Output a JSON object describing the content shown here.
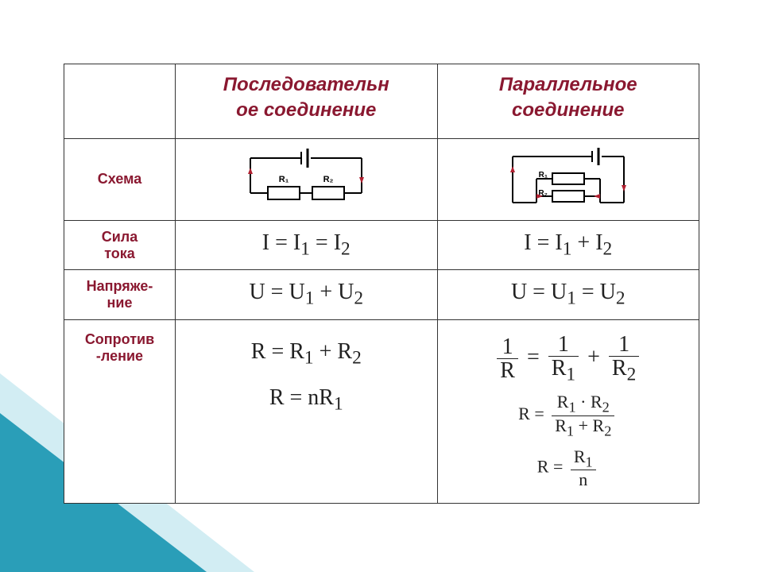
{
  "headers": {
    "series": "Последовательн<br>ое соединение",
    "parallel": "Параллельное<br>соединение"
  },
  "rows": {
    "schema": "Схема",
    "current": "Сила<br>тока",
    "voltage": "Напряже-<br>ние",
    "resistance": "Сопротив<br>-ление"
  },
  "formulas": {
    "series": {
      "current": "I = I<sub>1</sub> = I<sub>2</sub>",
      "voltage": "U = U<sub>1</sub> + U<sub>2</sub>",
      "resistance_line1": "R = R<sub>1</sub> + R<sub>2</sub>",
      "resistance_line2": "R = nR<sub>1</sub>"
    },
    "parallel": {
      "current": "I = I<sub>1</sub> + I<sub>2</sub>",
      "voltage": "U = U<sub>1</sub> = U<sub>2</sub>",
      "resistance_frac_parts": {
        "l_num": "1",
        "l_den": "R",
        "m_num": "1",
        "m_den": "R<sub>1</sub>",
        "r_num": "1",
        "r_den": "R<sub>2</sub>"
      },
      "resistance_line2_parts": {
        "lhs": "R =",
        "num": "R<sub>1</sub> · R<sub>2</sub>",
        "den": "R<sub>1</sub> + R<sub>2</sub>"
      },
      "resistance_line3_parts": {
        "lhs": "R =",
        "num": "R<sub>1</sub>",
        "den": "n"
      }
    }
  },
  "diagrams": {
    "labels": {
      "r1": "R₁",
      "r2": "R₂"
    },
    "colors": {
      "wire": "#000000",
      "arrow": "#b02030",
      "resistor_fill": "#ffffff"
    }
  },
  "styling": {
    "label_color": "#8a1830",
    "text_color": "#222222",
    "border_color": "#333333",
    "triangle_dark": "#2a9eb8",
    "triangle_light": "#bfe6ee",
    "header_fontsize": 24,
    "label_fontsize": 18,
    "formula_fontsize": 28
  }
}
